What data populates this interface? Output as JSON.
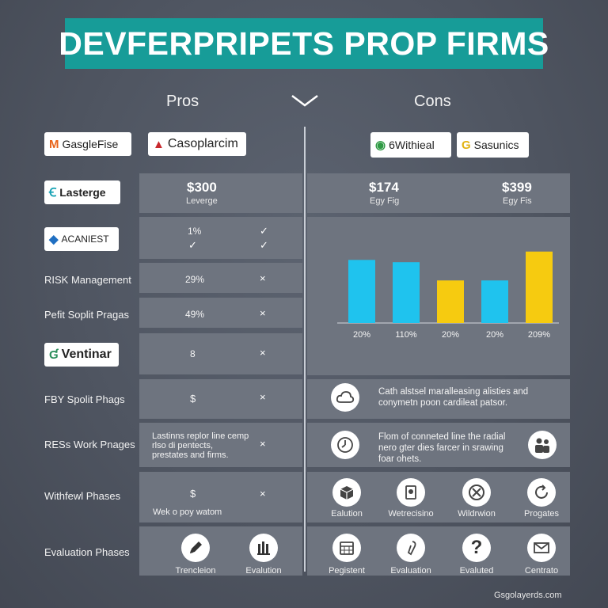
{
  "title": "DEVFERPRIPETS PROP FIRMS",
  "columns": {
    "pros": "Pros",
    "cons": "Cons"
  },
  "colors": {
    "banner": "#179c98",
    "panel": "#6e747f",
    "bar_cyan": "#1fc3ee",
    "bar_yellow": "#f6cb10"
  },
  "logos": {
    "l1": "GasgleFise",
    "l2": "Casoplarcim",
    "l3": "Lasterge",
    "l4": "ACANIEST",
    "l5": "Ventinar",
    "r1": "6Withieal",
    "r2": "Sasunics"
  },
  "rows": {
    "risk": "RISK Management",
    "profit": "Pefit Soplit Pragas",
    "fby": "FBY Spolit Phags",
    "work": "RESs Work Pnages",
    "withdrawal": "Withfewl Phases",
    "evaluation": "Evaluation Phases"
  },
  "pros": {
    "leverage_price": "$300",
    "leverage_sub": "Leverge",
    "acaniest_value": "1%",
    "risk_value": "29%",
    "profit_value": "49%",
    "ventinar_value": "8",
    "fby_value": "$",
    "work_text": "Lastinns replor line cemp rlso di pentects, prestates and firms.",
    "withdrawal_value": "$",
    "withdrawal_sub": "Wek o poy watom",
    "icon_a": "Trencleion",
    "icon_b": "Evalution"
  },
  "cons": {
    "price1": "$174",
    "sub1": "Egy Fig",
    "price2": "$399",
    "sub2": "Egy Fis",
    "fby_text": "Cath alstsel maralleasing alisties and conymetn poon cardileat patsor.",
    "work_text": "Flom of conneted line the radial nero gter dies farcer in srawing foar ohets.",
    "icons1": [
      "Ealution",
      "Wetrecisino",
      "Wildrwion",
      "Progates"
    ],
    "icons2": [
      "Pegistent",
      "Evaluation",
      "Evaluted",
      "Centrato"
    ]
  },
  "chart_data": {
    "type": "bar",
    "categories": [
      "20%",
      "110%",
      "20%",
      "20%",
      "209%"
    ],
    "series_colors": [
      "#1fc3ee",
      "#1fc3ee",
      "#f6cb10",
      "#1fc3ee",
      "#f6cb10"
    ],
    "values": [
      83,
      80,
      56,
      56,
      94
    ],
    "title": "",
    "xlabel": "",
    "ylabel": "",
    "ylim": [
      0,
      100
    ]
  },
  "footer": "Gsgolayerds.com"
}
